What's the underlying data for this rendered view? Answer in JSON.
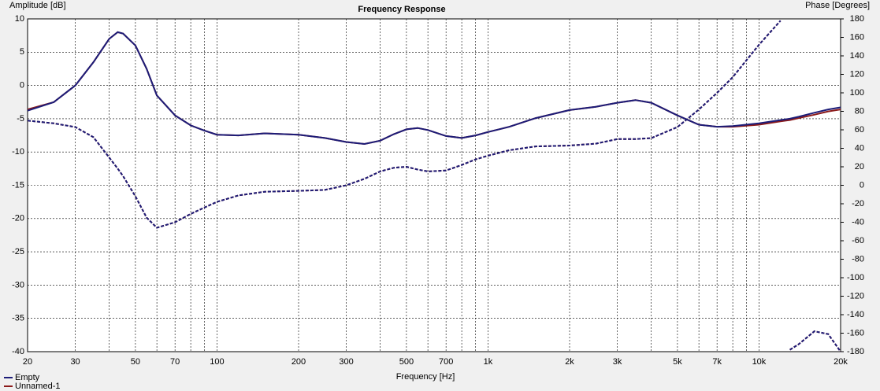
{
  "chart_data": {
    "type": "line",
    "title": "Frequency Response",
    "xlabel": "Frequency [Hz]",
    "ylabel": "Amplitude [dB]",
    "y2label": "Phase [Degrees]",
    "xscale": "log",
    "grid": true,
    "legend": "bottom-left",
    "x": [
      20,
      25,
      30,
      35,
      40,
      43,
      45,
      50,
      55,
      60,
      70,
      80,
      90,
      100,
      120,
      150,
      200,
      250,
      300,
      350,
      400,
      450,
      500,
      550,
      600,
      700,
      800,
      900,
      1000,
      1200,
      1500,
      2000,
      2500,
      3000,
      3500,
      4000,
      5000,
      6000,
      7000,
      8000,
      10000,
      12000,
      12500,
      13000,
      14000,
      16000,
      18000,
      20000
    ],
    "series": [
      {
        "name": "Unnamed-1",
        "color": "#8b1a1a",
        "values": [
          -3.6,
          -2.5,
          0,
          3.5,
          7,
          8,
          7.8,
          6,
          2.5,
          -1.5,
          -4.5,
          -6,
          -6.8,
          -7.4,
          -7.5,
          -7.2,
          -7.4,
          -7.9,
          -8.5,
          -8.8,
          -8.3,
          -7.3,
          -6.6,
          -6.4,
          -6.7,
          -7.6,
          -7.9,
          -7.5,
          -7,
          -6.2,
          -4.9,
          -3.7,
          -3.2,
          -2.6,
          -2.2,
          -2.6,
          -4.5,
          -5.9,
          -6.2,
          -6.2,
          -5.9,
          -5.4,
          -5.3,
          -5.2,
          -4.9,
          -4.4,
          -3.9,
          -3.6
        ],
        "phase": [
          70,
          67,
          63,
          52,
          30,
          18,
          10,
          -12,
          -35,
          -46,
          -40,
          -31,
          -24,
          -18,
          -11,
          -7,
          -6,
          -5,
          0,
          7,
          15,
          19,
          20,
          17,
          15,
          16,
          22,
          28,
          32,
          38,
          42,
          43,
          45,
          50,
          50,
          51,
          63,
          82,
          100,
          117,
          152,
          178,
          null,
          -178,
          -172,
          -158,
          -161,
          -180
        ]
      },
      {
        "name": "Empty",
        "color": "#1c1c78",
        "values": [
          -3.8,
          -2.5,
          0,
          3.5,
          7,
          8,
          7.8,
          6,
          2.5,
          -1.5,
          -4.5,
          -6,
          -6.8,
          -7.4,
          -7.5,
          -7.2,
          -7.4,
          -7.9,
          -8.5,
          -8.8,
          -8.3,
          -7.3,
          -6.6,
          -6.4,
          -6.7,
          -7.6,
          -7.9,
          -7.5,
          -7,
          -6.2,
          -4.9,
          -3.7,
          -3.2,
          -2.6,
          -2.2,
          -2.6,
          -4.5,
          -5.9,
          -6.2,
          -6.1,
          -5.7,
          -5.2,
          -5.1,
          -5,
          -4.7,
          -4.1,
          -3.6,
          -3.3
        ],
        "phase": [
          70,
          67,
          63,
          52,
          30,
          18,
          10,
          -12,
          -35,
          -46,
          -40,
          -31,
          -24,
          -18,
          -11,
          -7,
          -6,
          -5,
          0,
          7,
          15,
          19,
          20,
          17,
          15,
          16,
          22,
          28,
          32,
          38,
          42,
          43,
          45,
          50,
          50,
          51,
          63,
          82,
          100,
          117,
          152,
          178,
          null,
          -178,
          -172,
          -158,
          -161,
          -180
        ]
      }
    ],
    "xlim": [
      20,
      20000
    ],
    "xticks": [
      20,
      30,
      50,
      70,
      100,
      200,
      300,
      500,
      700,
      {
        "value": 1000,
        "label": "1k"
      },
      {
        "value": 2000,
        "label": "2k"
      },
      {
        "value": 3000,
        "label": "3k"
      },
      {
        "value": 5000,
        "label": "5k"
      },
      {
        "value": 7000,
        "label": "7k"
      },
      {
        "value": 10000,
        "label": "10k"
      },
      {
        "value": 20000,
        "label": "20k"
      }
    ],
    "xminorticks": [
      40,
      60,
      80,
      90,
      400,
      600,
      800,
      900,
      4000,
      6000,
      8000,
      9000
    ],
    "ylim": [
      -40,
      10
    ],
    "yticks": [
      10,
      5,
      0,
      -5,
      -10,
      -15,
      -20,
      -25,
      -30,
      -35,
      -40
    ],
    "y2lim": [
      -180,
      180
    ],
    "y2ticks": [
      180,
      160,
      140,
      120,
      100,
      80,
      60,
      40,
      20,
      0,
      -20,
      -40,
      -60,
      -80,
      -100,
      -120,
      -140,
      -160,
      -180
    ]
  }
}
